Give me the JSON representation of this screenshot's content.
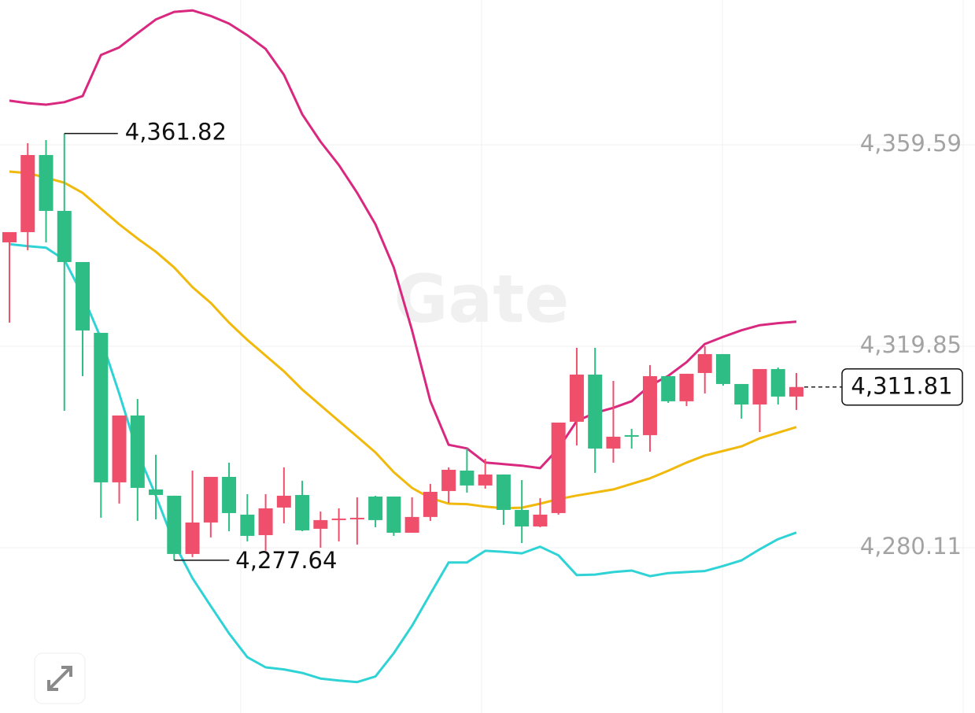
{
  "chart_data": {
    "type": "candlestick",
    "watermark": "Gate",
    "up_color": "#f04f6c",
    "down_color": "#2ebd85",
    "ylim": [
      4247.5,
      4388.15
    ],
    "yticks": [
      {
        "value": 4280.11,
        "label": "4,280.11"
      },
      {
        "value": 4319.85,
        "label": "4,319.85"
      },
      {
        "value": 4359.59,
        "label": "4,359.59"
      }
    ],
    "grid": true,
    "open": [
      4340.34,
      4342.36,
      4357.57,
      4346.55,
      4336.46,
      4322.49,
      4293.0,
      4306.19,
      4291.6,
      4290.36,
      4278.87,
      4285.08,
      4294.08,
      4286.63,
      4282.59,
      4288.03,
      4290.51,
      4283.84,
      4285.55,
      4285.7,
      4290.2,
      4290.2,
      4283.06,
      4286.17,
      4291.29,
      4295.32,
      4292.38,
      4294.55,
      4287.56,
      4284.3,
      4286.94,
      4304.95,
      4314.26,
      4299.67,
      4302.31,
      4302.31,
      4313.95,
      4308.99,
      4314.57,
      4318.3,
      4312.4,
      4308.36,
      4315.35,
      4309.92
    ],
    "high": [
      4342.36,
      4359.9,
      4360.52,
      4361.82,
      4336.46,
      4322.49,
      4306.19,
      4309.45,
      4298.43,
      4290.36,
      4295.32,
      4294.08,
      4296.88,
      4290.67,
      4290.67,
      4295.95,
      4293.31,
      4287.25,
      4287.87,
      4290.05,
      4290.36,
      4290.2,
      4290.05,
      4292.69,
      4295.95,
      4299.67,
      4297.65,
      4294.55,
      4293.46,
      4289.89,
      4304.79,
      4319.54,
      4319.54,
      4313.02,
      4303.55,
      4316.13,
      4313.95,
      4314.42,
      4319.85,
      4318.3,
      4312.4,
      4315.35,
      4315.66,
      4314.57
    ],
    "low": [
      4324.51,
      4338.79,
      4340.34,
      4307.12,
      4313.95,
      4286.01,
      4288.81,
      4285.39,
      4285.7,
      4277.64,
      4278.25,
      4282.13,
      4283.37,
      4281.35,
      4279.49,
      4284.92,
      4283.37,
      4280.11,
      4281.35,
      4280.73,
      4284.15,
      4282.44,
      4283.06,
      4285.39,
      4288.96,
      4290.98,
      4291.75,
      4284.61,
      4281.04,
      4284.15,
      4286.63,
      4300.29,
      4294.86,
      4296.88,
      4299.67,
      4299.05,
      4308.67,
      4308.05,
      4310.54,
      4312.09,
      4305.57,
      4302.93,
      4308.36,
      4307.28
    ],
    "close": [
      4342.36,
      4357.57,
      4346.55,
      4336.46,
      4322.96,
      4293.0,
      4306.19,
      4291.91,
      4290.51,
      4278.87,
      4285.08,
      4294.08,
      4286.94,
      4282.44,
      4287.87,
      4290.36,
      4283.53,
      4285.55,
      4285.86,
      4286.01,
      4285.55,
      4283.06,
      4286.17,
      4291.13,
      4295.48,
      4292.38,
      4294.55,
      4287.56,
      4284.3,
      4286.63,
      4304.79,
      4314.26,
      4299.67,
      4302.0,
      4302.0,
      4313.95,
      4308.99,
      4314.42,
      4318.3,
      4312.4,
      4308.36,
      4315.35,
      4309.92,
      4311.81
    ],
    "lines": [
      {
        "color": "#d9287f",
        "values": [
          4368.3,
          4367.8,
          4367.5,
          4368.0,
          4369.2,
          4377.3,
          4378.8,
          4381.6,
          4384.3,
          4385.8,
          4386.1,
          4385.0,
          4383.5,
          4381.2,
          4378.5,
          4373.4,
          4365.6,
          4360.2,
          4355.6,
          4350.1,
          4343.9,
          4335.4,
          4323.0,
          4309.0,
          4300.4,
          4299.7,
          4296.9,
          4296.6,
          4296.3,
          4295.8,
          4299.7,
          4305.1,
          4306.7,
          4307.7,
          4309.0,
          4312.1,
          4314.0,
          4316.7,
          4320.3,
          4321.7,
          4323.0,
          4324.0,
          4324.4,
          4324.7
        ]
      },
      {
        "color": "#f0b90b",
        "values": [
          4354.3,
          4354.0,
          4353.1,
          4352.1,
          4350.1,
          4347.0,
          4343.9,
          4341.1,
          4338.5,
          4335.4,
          4331.5,
          4328.4,
          4324.5,
          4321.1,
          4318.0,
          4314.9,
          4311.3,
          4308.2,
          4305.1,
          4302.0,
          4298.9,
          4295.0,
          4291.9,
          4289.9,
          4288.8,
          4288.7,
          4288.2,
          4287.9,
          4288.0,
          4288.8,
          4289.7,
          4290.4,
          4291.0,
          4291.6,
          4292.7,
          4293.8,
          4295.3,
          4296.9,
          4298.3,
          4299.2,
          4300.1,
          4301.7,
          4302.8,
          4303.9
        ]
      },
      {
        "color": "#2fd3d6",
        "values": [
          4340.0,
          4339.6,
          4339.3,
          4336.9,
          4329.9,
          4321.4,
          4310.5,
          4298.9,
          4290.4,
          4281.0,
          4274.1,
          4268.6,
          4263.2,
          4258.5,
          4256.5,
          4256.1,
          4255.4,
          4254.3,
          4253.9,
          4253.6,
          4254.7,
          4259.3,
          4264.7,
          4271.0,
          4277.2,
          4277.2,
          4279.5,
          4279.3,
          4279.0,
          4280.3,
          4278.6,
          4274.7,
          4274.8,
          4275.3,
          4275.6,
          4274.5,
          4275.1,
          4275.3,
          4275.5,
          4276.5,
          4277.6,
          4279.8,
          4281.8,
          4283.1
        ]
      }
    ],
    "max_label": "4,361.82",
    "min_label": "4,277.64",
    "last_label": "4,311.81"
  }
}
